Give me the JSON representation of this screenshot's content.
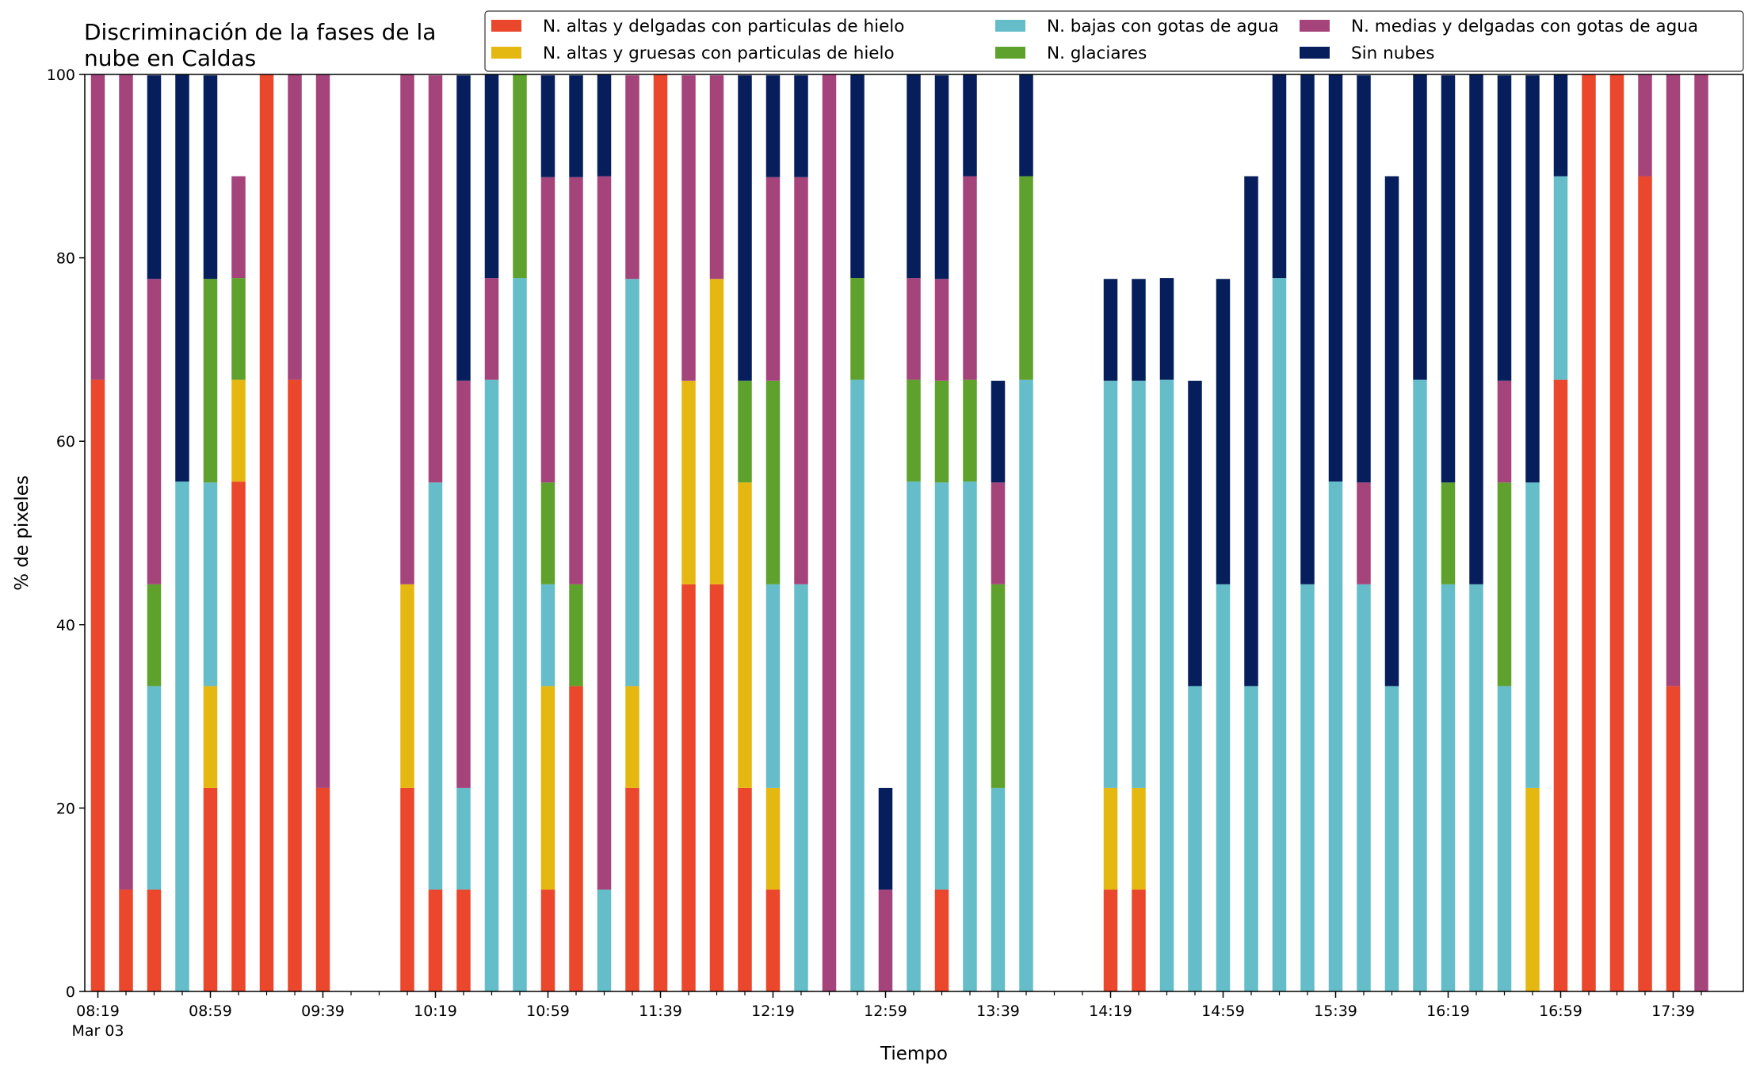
{
  "chart_data": {
    "type": "bar",
    "stacked": true,
    "title_lines": [
      "Discriminación de la fases de la",
      "nube en Caldas"
    ],
    "xlabel": "Tiempo",
    "ylabel": "% de pixeles",
    "ylim": [
      0,
      100
    ],
    "yticks": [
      "0",
      "20",
      "40",
      "60",
      "80",
      "100"
    ],
    "grid": false,
    "legend_position": "top-right",
    "x_tick_labels": [
      "08:19",
      "08:59",
      "09:39",
      "10:19",
      "10:59",
      "11:39",
      "12:19",
      "12:59",
      "13:39",
      "14:19",
      "14:59",
      "15:39",
      "16:19",
      "16:59",
      "17:39"
    ],
    "x_date_label": "Mar 03",
    "time_start": "08:19",
    "time_step_minutes": 10,
    "n_slots": 58,
    "x": [
      "08:19",
      "08:29",
      "08:39",
      "08:49",
      "08:59",
      "09:09",
      "09:19",
      "09:29",
      "09:39",
      "10:09",
      "10:19",
      "10:29",
      "10:39",
      "10:49",
      "10:59",
      "11:09",
      "11:19",
      "11:29",
      "11:39",
      "11:49",
      "11:59",
      "12:09",
      "12:19",
      "12:29",
      "12:39",
      "12:49",
      "12:59",
      "13:09",
      "13:19",
      "13:29",
      "13:39",
      "13:49",
      "14:19",
      "14:29",
      "14:39",
      "14:49",
      "14:59",
      "15:09",
      "15:19",
      "15:29",
      "15:39",
      "15:49",
      "15:59",
      "16:09",
      "16:19",
      "16:29",
      "16:39",
      "16:49",
      "16:59",
      "17:09",
      "17:19",
      "17:29",
      "17:39",
      "17:49"
    ],
    "series": [
      {
        "name": "N. altas y delgadas con particulas de hielo",
        "color": "#ea472c",
        "values": [
          66.7,
          11.1,
          11.1,
          0,
          22.2,
          55.6,
          100,
          66.7,
          22.2,
          22.2,
          11.1,
          11.1,
          0,
          0,
          11.1,
          33.3,
          0,
          22.2,
          100,
          44.4,
          44.4,
          22.2,
          11.1,
          0,
          0,
          0,
          0,
          0,
          11.1,
          0,
          0,
          0,
          11.1,
          11.1,
          0,
          0,
          0,
          0,
          0,
          0,
          0,
          0,
          0,
          0,
          0,
          0,
          0,
          0,
          66.7,
          100,
          100,
          88.9,
          33.3,
          0
        ]
      },
      {
        "name": "N. altas y gruesas con particulas de hielo",
        "color": "#e5b711",
        "values": [
          0,
          0,
          0,
          0,
          11.1,
          11.1,
          0,
          0,
          0,
          22.2,
          0,
          0,
          0,
          0,
          22.2,
          0,
          0,
          11.1,
          0,
          22.2,
          33.3,
          33.3,
          11.1,
          0,
          0,
          0,
          0,
          0,
          0,
          0,
          0,
          0,
          11.1,
          11.1,
          0,
          0,
          0,
          0,
          0,
          0,
          0,
          0,
          0,
          0,
          0,
          0,
          0,
          22.2,
          0,
          0,
          0,
          0,
          0,
          0
        ]
      },
      {
        "name": "N. bajas con gotas de agua",
        "color": "#64bdc8",
        "values": [
          0,
          0,
          22.2,
          55.6,
          22.2,
          0,
          0,
          0,
          0,
          0,
          44.4,
          11.1,
          66.7,
          77.8,
          11.1,
          0,
          11.1,
          44.4,
          0,
          0,
          0,
          0,
          22.2,
          44.4,
          0,
          66.7,
          0,
          55.6,
          44.4,
          55.6,
          22.2,
          66.7,
          44.4,
          44.4,
          66.7,
          33.3,
          44.4,
          33.3,
          77.8,
          44.4,
          55.6,
          44.4,
          33.3,
          66.7,
          44.4,
          44.4,
          33.3,
          33.3,
          22.2,
          0,
          0,
          0,
          0,
          0
        ]
      },
      {
        "name": "N. glaciares",
        "color": "#5ea12c",
        "values": [
          0,
          0,
          11.1,
          0,
          22.2,
          11.1,
          0,
          0,
          0,
          0,
          0,
          0,
          0,
          22.2,
          11.1,
          11.1,
          0,
          0,
          0,
          0,
          0,
          11.1,
          22.2,
          0,
          0,
          11.1,
          0,
          11.1,
          11.1,
          11.1,
          22.2,
          22.2,
          0,
          0,
          0,
          0,
          0,
          0,
          0,
          0,
          0,
          0,
          0,
          0,
          11.1,
          0,
          22.2,
          0,
          0,
          0,
          0,
          0,
          0,
          0
        ]
      },
      {
        "name": "N. medias y delgadas con gotas de agua",
        "color": "#a5447b",
        "values": [
          33.3,
          88.9,
          33.3,
          0,
          0,
          11.1,
          0,
          33.3,
          77.8,
          55.6,
          44.4,
          44.4,
          11.1,
          0,
          33.3,
          44.4,
          77.8,
          22.2,
          0,
          33.3,
          22.2,
          0,
          22.2,
          44.4,
          100,
          0,
          11.1,
          11.1,
          11.1,
          22.2,
          11.1,
          0,
          0,
          0,
          0,
          0,
          0,
          0,
          0,
          0,
          0,
          11.1,
          0,
          0,
          0,
          0,
          11.1,
          0,
          0,
          0,
          0,
          11.1,
          66.7,
          100
        ]
      },
      {
        "name": "Sin nubes",
        "color": "#061f5c",
        "values": [
          0,
          0,
          22.2,
          44.4,
          22.2,
          0,
          0,
          0,
          0,
          0,
          0,
          33.3,
          22.2,
          0,
          11.1,
          11.1,
          11.1,
          0,
          0,
          0,
          0,
          33.3,
          11.1,
          11.1,
          0,
          22.2,
          11.1,
          22.2,
          22.2,
          11.1,
          11.1,
          11.1,
          11.1,
          11.1,
          11.1,
          33.3,
          33.3,
          55.6,
          22.2,
          55.6,
          44.4,
          44.4,
          55.6,
          33.3,
          44.4,
          55.6,
          33.3,
          44.4,
          11.1,
          0,
          0,
          0,
          0,
          0
        ]
      }
    ]
  }
}
